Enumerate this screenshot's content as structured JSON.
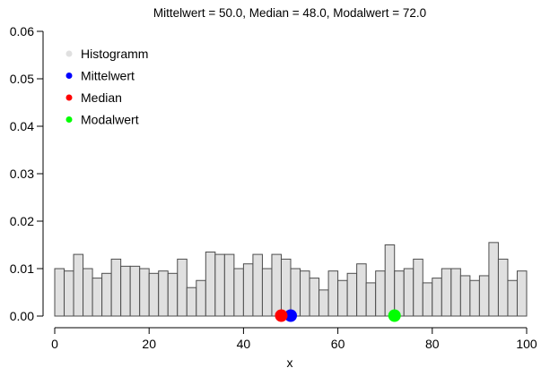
{
  "chart_data": {
    "type": "bar",
    "title": "Mittelwert = 50.0, Median = 48.0, Modalwert = 72.0",
    "xlabel": "x",
    "ylabel": "",
    "xlim": [
      0,
      100
    ],
    "ylim": [
      0,
      0.06
    ],
    "x_ticks": [
      "0",
      "20",
      "40",
      "60",
      "80",
      "100"
    ],
    "y_ticks": [
      "0.00",
      "0.01",
      "0.02",
      "0.03",
      "0.04",
      "0.05",
      "0.06"
    ],
    "grid": false,
    "legend_position": "top-left",
    "bin_width": 2,
    "bin_starts": [
      0,
      2,
      4,
      6,
      8,
      10,
      12,
      14,
      16,
      18,
      20,
      22,
      24,
      26,
      28,
      30,
      32,
      34,
      36,
      38,
      40,
      42,
      44,
      46,
      48,
      50,
      52,
      54,
      56,
      58,
      60,
      62,
      64,
      66,
      68,
      70,
      72,
      74,
      76,
      78,
      80,
      82,
      84,
      86,
      88,
      90,
      92,
      94,
      96,
      98
    ],
    "values": [
      0.01,
      0.0095,
      0.013,
      0.01,
      0.008,
      0.009,
      0.012,
      0.0105,
      0.0105,
      0.01,
      0.009,
      0.0095,
      0.009,
      0.012,
      0.006,
      0.0075,
      0.0135,
      0.013,
      0.013,
      0.01,
      0.011,
      0.013,
      0.01,
      0.013,
      0.012,
      0.01,
      0.0095,
      0.008,
      0.0055,
      0.0095,
      0.0075,
      0.009,
      0.011,
      0.007,
      0.0095,
      0.015,
      0.0095,
      0.01,
      0.012,
      0.007,
      0.008,
      0.01,
      0.01,
      0.0085,
      0.0075,
      0.0085,
      0.0155,
      0.012,
      0.0075,
      0.0095
    ],
    "markers": [
      {
        "name": "Mittelwert",
        "x": 50.0,
        "y": 0,
        "color": "#0000ff"
      },
      {
        "name": "Median",
        "x": 48.0,
        "y": 0,
        "color": "#ff0000"
      },
      {
        "name": "Modalwert",
        "x": 72.0,
        "y": 0,
        "color": "#00ff00"
      }
    ],
    "legend": [
      {
        "label": "Histogramm",
        "color": "#e0e0e0"
      },
      {
        "label": "Mittelwert",
        "color": "#0000ff"
      },
      {
        "label": "Median",
        "color": "#ff0000"
      },
      {
        "label": "Modalwert",
        "color": "#00ff00"
      }
    ],
    "bar_fill": "#e0e0e0",
    "bar_stroke": "#4d4d4d"
  }
}
